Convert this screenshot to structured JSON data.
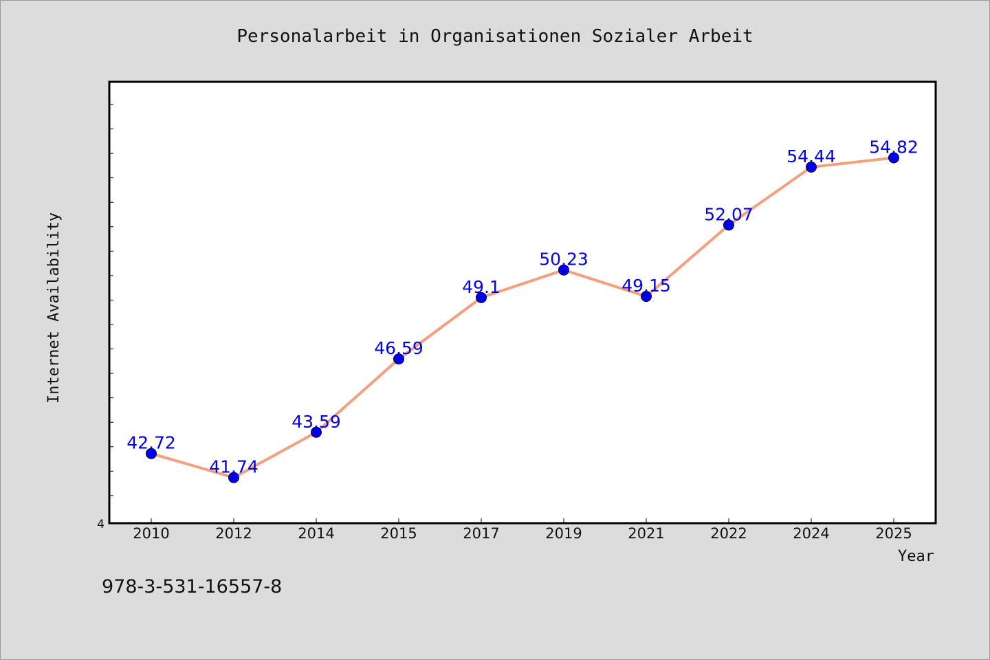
{
  "chart_data": {
    "type": "line",
    "title": "Personalarbeit in Organisationen Sozialer Arbeit",
    "xlabel": "Year",
    "ylabel": "Internet Availability",
    "categories": [
      "2010",
      "2012",
      "2014",
      "2015",
      "2017",
      "2019",
      "2021",
      "2022",
      "2024",
      "2025"
    ],
    "series": [
      {
        "values": [
          42.72,
          41.74,
          43.59,
          46.59,
          49.1,
          50.23,
          49.15,
          52.07,
          54.44,
          54.82
        ]
      }
    ],
    "data_labels": [
      "42.72",
      "41.74",
      "43.59",
      "46.59",
      "49.1",
      "50.23",
      "49.15",
      "52.07",
      "54.44",
      "54.82"
    ],
    "ylim": [
      39.9,
      57.9
    ],
    "y_tick_label": "4",
    "grid": false,
    "line_color": "#f4a07e",
    "marker_color": "#0000ee",
    "label_color": "#0000ee"
  },
  "footnote": "978-3-531-16557-8"
}
